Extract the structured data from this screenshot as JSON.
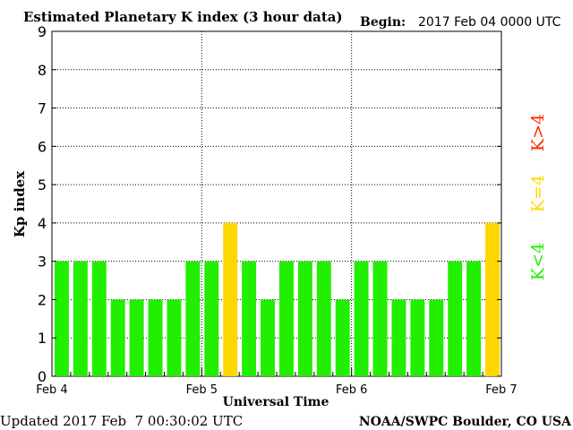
{
  "header": {
    "title": "Estimated Planetary K index (3 hour data)",
    "begin_label": "Begin:",
    "begin_value": "2017 Feb 04 0000 UTC"
  },
  "footer": {
    "updated": "Updated 2017 Feb  7 00:30:02 UTC",
    "source": "NOAA/SWPC Boulder, CO USA"
  },
  "legend": {
    "high": {
      "label": "K>4",
      "color": "#ff2a00"
    },
    "mid": {
      "label": "K=4",
      "color": "#ffd700"
    },
    "low": {
      "label": "K<4",
      "color": "#22ee00"
    }
  },
  "chart_data": {
    "type": "bar",
    "xlabel": "Universal Time",
    "ylabel": "Kp index",
    "ylim": [
      0,
      9
    ],
    "yticks": [
      0,
      1,
      2,
      3,
      4,
      5,
      6,
      7,
      8,
      9
    ],
    "xticks": [
      "Feb 4",
      "Feb 5",
      "Feb 6",
      "Feb 7"
    ],
    "grid": "dotted",
    "interval_hours": 3,
    "values": [
      3,
      3,
      3,
      2,
      2,
      2,
      2,
      3,
      3,
      4,
      3,
      2,
      3,
      3,
      3,
      2,
      3,
      3,
      2,
      2,
      2,
      3,
      3,
      4
    ],
    "colors": {
      "low": "#22ee00",
      "mid": "#ffd700",
      "high": "#ff2a00"
    }
  }
}
